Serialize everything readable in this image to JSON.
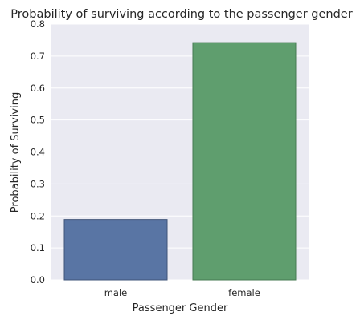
{
  "chart_data": {
    "type": "bar",
    "title": "Probability of surviving according to the passenger gender",
    "xlabel": "Passenger Gender",
    "ylabel": "Probability of Surviving",
    "categories": [
      "male",
      "female"
    ],
    "values": [
      0.189,
      0.742
    ],
    "ylim": [
      0,
      0.8
    ],
    "yticks": [
      "0.0",
      "0.1",
      "0.2",
      "0.3",
      "0.4",
      "0.5",
      "0.6",
      "0.7",
      "0.8"
    ],
    "grid": true,
    "legend": "none",
    "colors": {
      "bars": [
        "#5975a4",
        "#5f9e6e"
      ],
      "bar_edge": [
        "#3f5478",
        "#457a51"
      ],
      "plot_background": "#eaeaf2",
      "grid": "#ffffff"
    }
  }
}
